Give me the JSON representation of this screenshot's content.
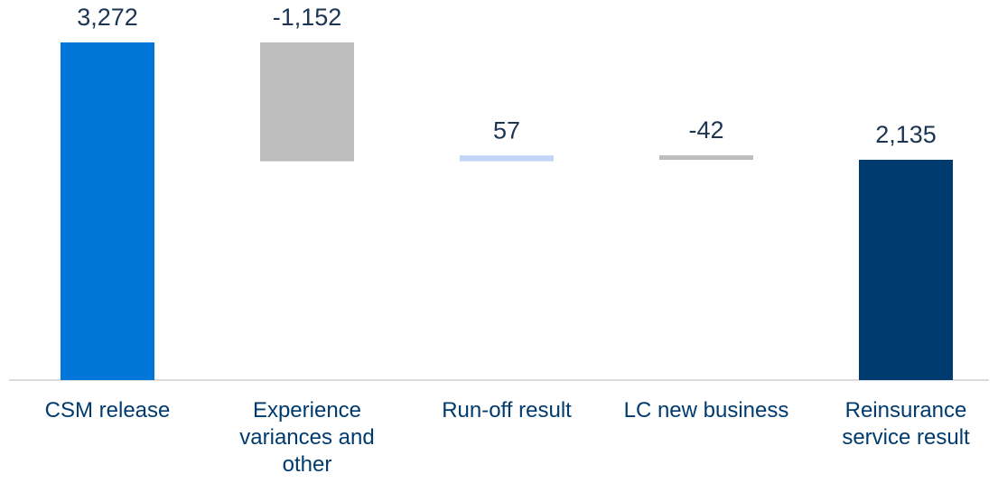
{
  "chart_data": {
    "type": "waterfall",
    "categories": [
      "CSM release",
      "Experience variances and other",
      "Run-off result",
      "LC new business",
      "Reinsurance service result"
    ],
    "values": [
      3272,
      -1152,
      57,
      -42,
      2135
    ],
    "value_labels": [
      "3,272",
      "-1,152",
      "57",
      "-42",
      "2,135"
    ],
    "is_total": [
      false,
      false,
      false,
      false,
      true
    ],
    "colors": [
      "#0077d8",
      "#bdbdbd",
      "#c2d5f5",
      "#bdbdbd",
      "#003b6f"
    ]
  }
}
